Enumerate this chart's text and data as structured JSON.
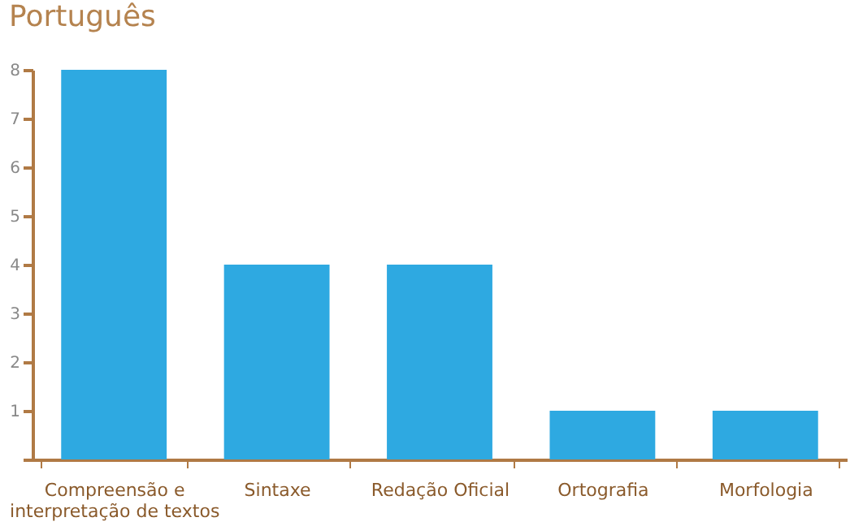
{
  "chart_data": {
    "type": "bar",
    "title": "Português",
    "categories": [
      "Compreensão e interpretação de textos",
      "Sintaxe",
      "Redação Oficial",
      "Ortografia",
      "Morfologia"
    ],
    "values": [
      8,
      4,
      4,
      1,
      1
    ],
    "color": "#2ea9e1",
    "ylim": [
      0,
      8
    ],
    "yticks": [
      {
        "value": 0,
        "label": null
      },
      1,
      2,
      3,
      4,
      5,
      6,
      7,
      8
    ],
    "grid": false
  }
}
